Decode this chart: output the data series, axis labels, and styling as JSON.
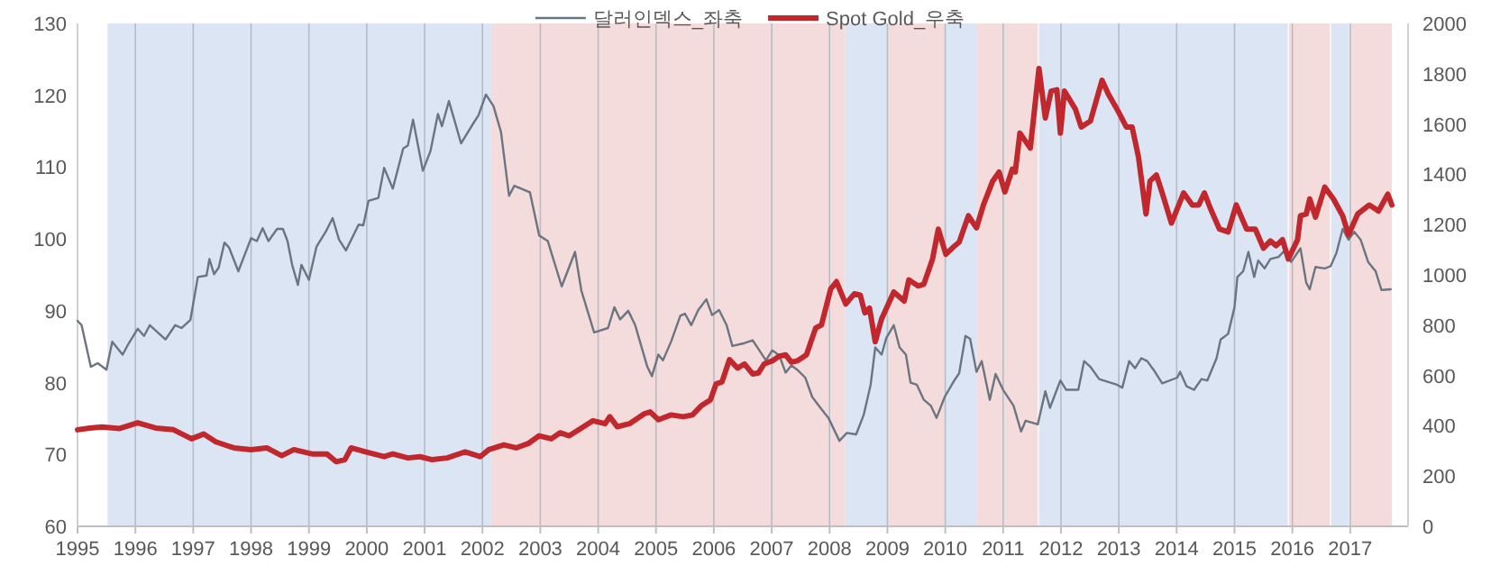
{
  "chart_data": {
    "type": "line",
    "xlim": [
      1995,
      2018
    ],
    "xticks": [
      1995,
      1996,
      1997,
      1998,
      1999,
      2000,
      2001,
      2002,
      2003,
      2004,
      2005,
      2006,
      2007,
      2008,
      2009,
      2010,
      2011,
      2012,
      2013,
      2014,
      2015,
      2016,
      2017
    ],
    "ylim": [
      60,
      130
    ],
    "yticks": [
      60,
      70,
      80,
      90,
      100,
      110,
      120,
      130
    ],
    "y2lim": [
      0,
      2000
    ],
    "y2ticks": [
      0,
      200,
      400,
      600,
      800,
      1000,
      1200,
      1400,
      1600,
      1800,
      2000
    ],
    "grid": "x",
    "legend": "top",
    "bands": [
      {
        "axis": "x",
        "from": 1995.52,
        "to": 2002.15,
        "color": "#dbe5f4"
      },
      {
        "axis": "x",
        "from": 2002.15,
        "to": 2008.27,
        "color": "#f5dcdc"
      },
      {
        "axis": "x",
        "from": 2008.27,
        "to": 2009.0,
        "color": "#dbe5f4"
      },
      {
        "axis": "x",
        "from": 2009.0,
        "to": 2010.0,
        "color": "#f5dcdc"
      },
      {
        "axis": "x",
        "from": 2010.0,
        "to": 2010.55,
        "color": "#dbe5f4"
      },
      {
        "axis": "x",
        "from": 2010.55,
        "to": 2011.6,
        "color": "#f5dcdc"
      },
      {
        "axis": "x",
        "from": 2011.62,
        "to": 2015.92,
        "color": "#dbe5f4"
      },
      {
        "axis": "x",
        "from": 2015.94,
        "to": 2016.65,
        "color": "#f5dcdc"
      },
      {
        "axis": "x",
        "from": 2016.67,
        "to": 2016.98,
        "color": "#dbe5f4"
      },
      {
        "axis": "x",
        "from": 2017.0,
        "to": 2017.72,
        "color": "#f5dcdc"
      }
    ],
    "series": [
      {
        "name": "달러인덱스_좌축",
        "color": "#6b7580",
        "x": [
          1995.0,
          1995.07,
          1995.23,
          1995.35,
          1995.5,
          1995.6,
          1995.78,
          1995.88,
          1996.04,
          1996.15,
          1996.25,
          1996.52,
          1996.69,
          1996.8,
          1996.95,
          1997.08,
          1997.23,
          1997.28,
          1997.36,
          1997.44,
          1997.54,
          1997.62,
          1997.78,
          1998.0,
          1998.1,
          1998.2,
          1998.3,
          1998.45,
          1998.55,
          1998.63,
          1998.71,
          1998.81,
          1998.87,
          1999.0,
          1999.13,
          1999.29,
          1999.41,
          1999.52,
          1999.64,
          1999.86,
          1999.94,
          2000.03,
          2000.2,
          2000.3,
          2000.45,
          2000.63,
          2000.71,
          2000.8,
          2000.97,
          2001.1,
          2001.23,
          2001.3,
          2001.42,
          2001.63,
          2001.85,
          2001.93,
          2002.06,
          2002.19,
          2002.32,
          2002.46,
          2002.55,
          2002.82,
          2002.98,
          2003.13,
          2003.37,
          2003.6,
          2003.71,
          2003.93,
          2004.17,
          2004.28,
          2004.38,
          2004.52,
          2004.64,
          2004.85,
          2004.93,
          2005.04,
          2005.12,
          2005.26,
          2005.42,
          2005.5,
          2005.61,
          2005.73,
          2005.87,
          2005.97,
          2006.09,
          2006.22,
          2006.32,
          2006.53,
          2006.67,
          2006.77,
          2006.9,
          2007.01,
          2007.13,
          2007.24,
          2007.34,
          2007.44,
          2007.58,
          2007.7,
          2007.86,
          2007.98,
          2008.17,
          2008.3,
          2008.46,
          2008.59,
          2008.71,
          2008.79,
          2008.9,
          2008.98,
          2009.11,
          2009.21,
          2009.32,
          2009.4,
          2009.51,
          2009.63,
          2009.75,
          2009.85,
          2009.99,
          2010.14,
          2010.24,
          2010.35,
          2010.43,
          2010.54,
          2010.63,
          2010.77,
          2010.87,
          2011.0,
          2011.18,
          2011.31,
          2011.39,
          2011.6,
          2011.73,
          2011.81,
          2011.99,
          2012.09,
          2012.3,
          2012.4,
          2012.51,
          2012.66,
          2012.82,
          2012.97,
          2013.06,
          2013.18,
          2013.28,
          2013.39,
          2013.49,
          2013.6,
          2013.75,
          2014.01,
          2014.06,
          2014.17,
          2014.3,
          2014.43,
          2014.53,
          2014.69,
          2014.76,
          2014.89,
          2015.0,
          2015.05,
          2015.15,
          2015.24,
          2015.34,
          2015.41,
          2015.52,
          2015.62,
          2015.76,
          2015.88,
          2015.98,
          2016.14,
          2016.24,
          2016.3,
          2016.4,
          2016.56,
          2016.66,
          2016.76,
          2016.87,
          2016.97,
          2017.07,
          2017.18,
          2017.31,
          2017.44,
          2017.54,
          2017.7
        ],
        "values": [
          88.6,
          88.0,
          82.2,
          82.7,
          81.8,
          85.7,
          83.9,
          85.4,
          87.5,
          86.5,
          88.0,
          86.0,
          88.0,
          87.6,
          88.7,
          94.7,
          94.9,
          97.2,
          95.1,
          96.0,
          99.5,
          98.8,
          95.5,
          100.1,
          99.7,
          101.5,
          99.7,
          101.4,
          101.4,
          99.7,
          96.4,
          93.6,
          96.4,
          94.3,
          98.9,
          101.0,
          102.9,
          99.9,
          98.4,
          102.0,
          101.9,
          105.3,
          105.7,
          109.9,
          107.0,
          112.6,
          113.0,
          116.6,
          109.5,
          112.2,
          117.4,
          115.7,
          119.2,
          113.3,
          116.2,
          117.2,
          120.1,
          118.5,
          114.9,
          106.0,
          107.4,
          106.5,
          100.5,
          99.7,
          93.4,
          98.2,
          92.8,
          87.0,
          87.6,
          90.5,
          88.8,
          90.0,
          88.0,
          82.2,
          80.9,
          83.9,
          83.1,
          85.7,
          89.3,
          89.6,
          88.0,
          90.1,
          91.6,
          89.4,
          90.1,
          88.0,
          85.1,
          85.5,
          85.9,
          84.7,
          83.1,
          84.5,
          83.8,
          81.4,
          82.4,
          81.8,
          80.7,
          78.0,
          76.3,
          75.1,
          71.9,
          73.0,
          72.8,
          75.5,
          79.7,
          84.9,
          83.9,
          86.2,
          88.0,
          84.9,
          83.9,
          80.0,
          79.7,
          77.6,
          76.8,
          75.1,
          78.0,
          80.1,
          81.3,
          86.5,
          86.1,
          81.5,
          83.0,
          77.6,
          81.2,
          79.0,
          76.8,
          73.2,
          74.7,
          74.2,
          78.8,
          76.5,
          80.3,
          79.0,
          79.0,
          83.0,
          82.2,
          80.5,
          80.1,
          79.7,
          79.3,
          83.0,
          82.0,
          83.4,
          83.0,
          81.8,
          79.9,
          80.7,
          81.5,
          79.5,
          79.0,
          80.5,
          80.3,
          83.4,
          86.0,
          86.8,
          90.5,
          94.7,
          95.5,
          98.2,
          94.7,
          97.0,
          95.9,
          97.2,
          97.5,
          98.5,
          96.8,
          98.7,
          93.9,
          93.0,
          96.1,
          95.9,
          96.2,
          98.0,
          101.4,
          99.9,
          101.0,
          99.9,
          96.8,
          95.5,
          92.9,
          93.0
        ]
      },
      {
        "name": "Spot Gold_우축",
        "color": "#c0282d",
        "axis": "y2",
        "x": [
          1995.0,
          1995.21,
          1995.42,
          1995.73,
          1996.04,
          1996.35,
          1996.66,
          1996.97,
          1997.18,
          1997.39,
          1997.7,
          1998.0,
          1998.27,
          1998.53,
          1998.74,
          1999.05,
          1999.31,
          1999.47,
          1999.62,
          1999.73,
          1999.98,
          2000.3,
          2000.45,
          2000.71,
          2000.92,
          2001.13,
          2001.39,
          2001.7,
          2001.96,
          2002.11,
          2002.37,
          2002.58,
          2002.79,
          2002.98,
          2003.19,
          2003.34,
          2003.5,
          2003.71,
          2003.91,
          2004.12,
          2004.2,
          2004.33,
          2004.54,
          2004.8,
          2004.9,
          2005.04,
          2005.26,
          2005.47,
          2005.63,
          2005.78,
          2005.94,
          2006.04,
          2006.14,
          2006.27,
          2006.41,
          2006.53,
          2006.67,
          2006.77,
          2006.87,
          2007.01,
          2007.13,
          2007.24,
          2007.34,
          2007.44,
          2007.6,
          2007.76,
          2007.86,
          2008.02,
          2008.12,
          2008.28,
          2008.43,
          2008.53,
          2008.61,
          2008.69,
          2008.79,
          2008.9,
          2009.11,
          2009.29,
          2009.37,
          2009.53,
          2009.63,
          2009.78,
          2009.88,
          2010.01,
          2010.14,
          2010.24,
          2010.4,
          2010.54,
          2010.66,
          2010.82,
          2010.93,
          2011.03,
          2011.16,
          2011.21,
          2011.29,
          2011.47,
          2011.62,
          2011.73,
          2011.83,
          2011.93,
          2011.99,
          2012.06,
          2012.25,
          2012.35,
          2012.51,
          2012.71,
          2012.82,
          2012.97,
          2013.13,
          2013.23,
          2013.34,
          2013.47,
          2013.54,
          2013.65,
          2013.75,
          2013.91,
          2014.12,
          2014.27,
          2014.38,
          2014.48,
          2014.58,
          2014.74,
          2014.89,
          2015.03,
          2015.21,
          2015.36,
          2015.5,
          2015.62,
          2015.72,
          2015.83,
          2015.93,
          2016.09,
          2016.14,
          2016.24,
          2016.3,
          2016.4,
          2016.56,
          2016.71,
          2016.87,
          2016.97,
          2017.13,
          2017.33,
          2017.49,
          2017.65,
          2017.72
        ],
        "values": [
          384,
          391,
          395,
          389,
          412,
          391,
          384,
          348,
          367,
          336,
          312,
          305,
          312,
          281,
          305,
          288,
          288,
          257,
          265,
          312,
          296,
          277,
          288,
          272,
          277,
          265,
          272,
          296,
          277,
          305,
          324,
          312,
          329,
          360,
          348,
          372,
          360,
          391,
          420,
          408,
          436,
          396,
          408,
          448,
          455,
          424,
          443,
          436,
          443,
          479,
          503,
          567,
          574,
          663,
          629,
          646,
          606,
          610,
          646,
          658,
          677,
          682,
          653,
          658,
          682,
          789,
          801,
          944,
          973,
          884,
          925,
          920,
          849,
          868,
          734,
          825,
          932,
          896,
          980,
          956,
          963,
          1063,
          1182,
          1082,
          1111,
          1130,
          1235,
          1187,
          1278,
          1373,
          1409,
          1330,
          1421,
          1409,
          1564,
          1504,
          1821,
          1624,
          1731,
          1736,
          1564,
          1731,
          1659,
          1588,
          1612,
          1774,
          1719,
          1659,
          1588,
          1588,
          1469,
          1242,
          1373,
          1397,
          1326,
          1206,
          1326,
          1278,
          1278,
          1326,
          1266,
          1182,
          1171,
          1278,
          1182,
          1182,
          1106,
          1135,
          1116,
          1140,
          1063,
          1140,
          1235,
          1242,
          1302,
          1230,
          1349,
          1302,
          1235,
          1159,
          1242,
          1278,
          1254,
          1321,
          1278
        ]
      }
    ]
  }
}
